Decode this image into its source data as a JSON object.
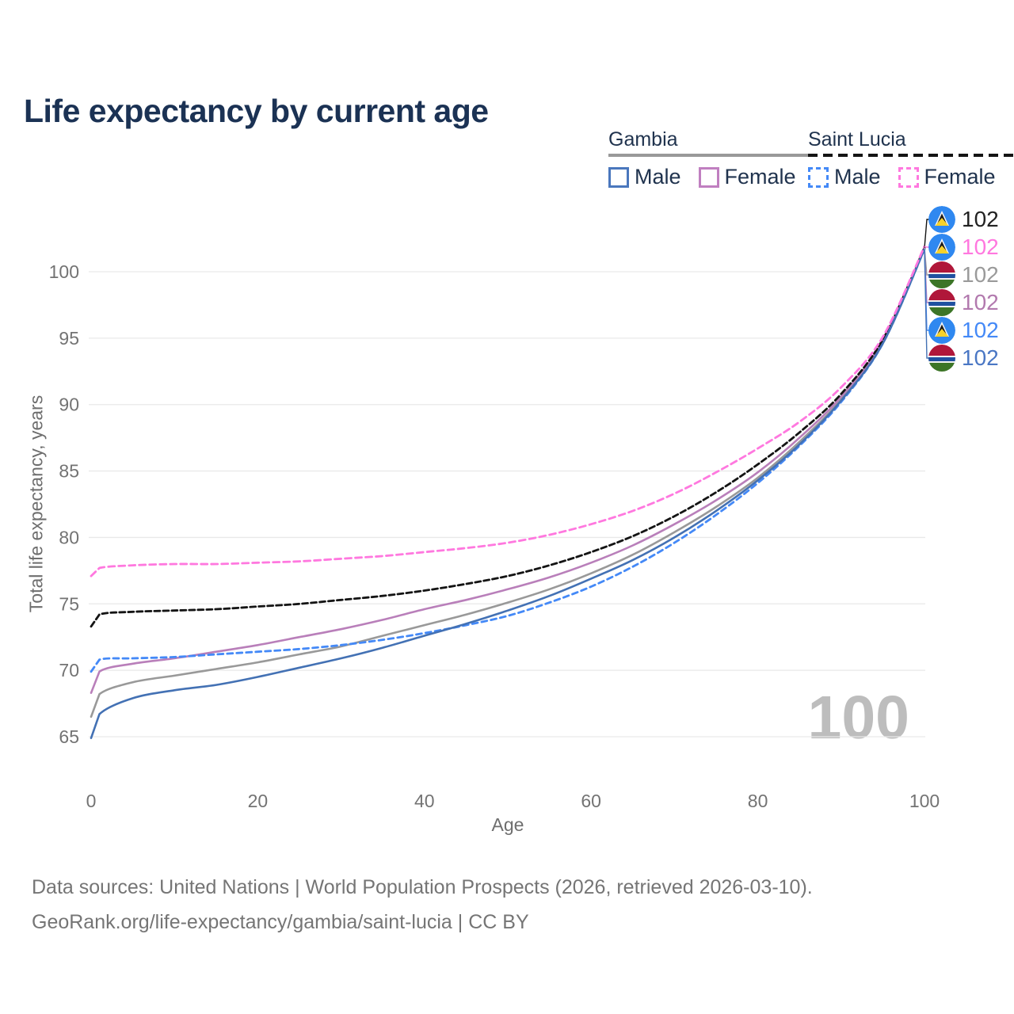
{
  "title": "Life expectancy by current age",
  "legend": {
    "groups": [
      {
        "country": "Gambia",
        "line_style": "solid",
        "swatch_color": "#999999",
        "items": [
          {
            "label": "Male",
            "color": "#4a77bd",
            "dashed": false
          },
          {
            "label": "Female",
            "color": "#c07fc0",
            "dashed": false
          }
        ]
      },
      {
        "country": "Saint Lucia",
        "line_style": "dashed",
        "swatch_color": "#141414",
        "items": [
          {
            "label": "Male",
            "color": "#4489f7",
            "dashed": true
          },
          {
            "label": "Female",
            "color": "#ff78df",
            "dashed": true
          }
        ]
      }
    ]
  },
  "chart_data": {
    "type": "line",
    "title": "Life expectancy by current age",
    "xlabel": "Age",
    "ylabel": "Total life expectancy, years",
    "xlim": [
      0,
      100
    ],
    "ylim": [
      63,
      103
    ],
    "grid": "horizontal",
    "legend_position": "top-right",
    "xticks": [
      0,
      20,
      40,
      60,
      80,
      100
    ],
    "yticks": [
      65,
      70,
      75,
      80,
      85,
      90,
      95,
      100
    ],
    "x": [
      0,
      1,
      5,
      10,
      15,
      20,
      25,
      30,
      35,
      40,
      45,
      50,
      55,
      60,
      65,
      70,
      75,
      80,
      85,
      90,
      95,
      100
    ],
    "series": [
      {
        "name": "Saint Lucia — Both sexes",
        "country": "Saint Lucia",
        "sex": "both",
        "color": "#141414",
        "dashed": true,
        "dash": [
          7,
          4
        ],
        "flag": "saint-lucia",
        "end_label": "102",
        "label_color": "#222222",
        "values": [
          73.3,
          74.2,
          74.4,
          74.5,
          74.6,
          74.8,
          75.0,
          75.3,
          75.6,
          76.0,
          76.5,
          77.1,
          77.9,
          78.9,
          80.1,
          81.6,
          83.4,
          85.5,
          87.9,
          90.8,
          94.9,
          101.8
        ]
      },
      {
        "name": "Saint Lucia — Female",
        "country": "Saint Lucia",
        "sex": "female",
        "color": "#ff78df",
        "dashed": true,
        "dash": [
          8,
          5
        ],
        "flag": "saint-lucia",
        "end_label": "102",
        "label_color": "#ff78df",
        "values": [
          77.1,
          77.7,
          77.9,
          78.0,
          78.0,
          78.1,
          78.2,
          78.4,
          78.6,
          78.9,
          79.2,
          79.6,
          80.2,
          81.0,
          82.0,
          83.3,
          84.9,
          86.7,
          88.7,
          91.3,
          95.1,
          101.9
        ]
      },
      {
        "name": "Gambia — Both sexes",
        "country": "Gambia",
        "sex": "both",
        "color": "#999999",
        "dashed": false,
        "dash": null,
        "flag": "gambia",
        "end_label": "102",
        "label_color": "#9a9a9a",
        "values": [
          66.5,
          68.2,
          69.1,
          69.6,
          70.1,
          70.6,
          71.2,
          71.8,
          72.6,
          73.4,
          74.2,
          75.1,
          76.1,
          77.3,
          78.7,
          80.4,
          82.3,
          84.5,
          87.2,
          90.4,
          94.7,
          101.8
        ]
      },
      {
        "name": "Gambia — Female",
        "country": "Gambia",
        "sex": "female",
        "color": "#b97fba",
        "dashed": false,
        "dash": null,
        "flag": "gambia",
        "end_label": "102",
        "label_color": "#b279ae",
        "values": [
          68.3,
          69.9,
          70.5,
          70.9,
          71.4,
          71.9,
          72.5,
          73.1,
          73.8,
          74.6,
          75.3,
          76.1,
          77.0,
          78.1,
          79.4,
          81.0,
          82.8,
          84.9,
          87.5,
          90.6,
          94.8,
          101.8
        ]
      },
      {
        "name": "Saint Lucia — Male",
        "country": "Saint Lucia",
        "sex": "male",
        "color": "#4489f7",
        "dashed": true,
        "dash": [
          7,
          5
        ],
        "flag": "saint-lucia",
        "end_label": "102",
        "label_color": "#4489f7",
        "values": [
          69.9,
          70.8,
          70.9,
          71.0,
          71.2,
          71.4,
          71.6,
          71.9,
          72.3,
          72.8,
          73.4,
          74.1,
          75.1,
          76.3,
          77.8,
          79.6,
          81.7,
          84.1,
          86.9,
          90.2,
          94.6,
          101.7
        ]
      },
      {
        "name": "Gambia — Male",
        "country": "Gambia",
        "sex": "male",
        "color": "#4371b4",
        "dashed": false,
        "dash": null,
        "flag": "gambia",
        "end_label": "102",
        "label_color": "#4a77c4",
        "values": [
          64.9,
          66.7,
          67.9,
          68.5,
          68.9,
          69.5,
          70.2,
          70.9,
          71.7,
          72.6,
          73.5,
          74.5,
          75.6,
          76.9,
          78.3,
          80.0,
          82.0,
          84.3,
          87.0,
          90.3,
          94.6,
          101.7
        ]
      }
    ]
  },
  "age_indicator": "100",
  "footer": {
    "line1": "Data sources: United Nations | World Population Prospects (2026, retrieved 2026-03-10).",
    "line2": "GeoRank.org/life-expectancy/gambia/saint-lucia | CC BY"
  }
}
